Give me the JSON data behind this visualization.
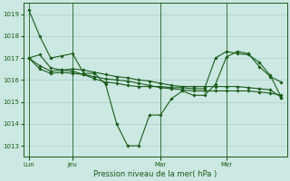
{
  "bg_color": "#cce8e2",
  "grid_color": "#a8d0cc",
  "line_color": "#1a5c1a",
  "xlabel": "Pression niveau de la mer( hPa )",
  "ylim": [
    1012.5,
    1019.5
  ],
  "yticks": [
    1013,
    1014,
    1015,
    1016,
    1017,
    1018,
    1019
  ],
  "x_tick_labels": [
    "Lun",
    "Jeu",
    "Mar",
    "Mer"
  ],
  "x_tick_positions": [
    0,
    4,
    12,
    18
  ],
  "n_points": 24,
  "series": [
    [
      1019.2,
      1018.0,
      1017.0,
      1017.1,
      1017.2,
      1016.3,
      1016.3,
      1015.8,
      1014.0,
      1013.0,
      1013.0,
      1014.4,
      1014.4,
      1015.15,
      1015.5,
      1015.3,
      1015.3,
      1015.8,
      1017.05,
      1017.3,
      1017.2,
      1016.6,
      1016.15,
      1015.9
    ],
    [
      1017.0,
      1016.5,
      1016.3,
      1016.35,
      1016.3,
      1016.25,
      1016.15,
      1016.05,
      1016.0,
      1015.95,
      1015.85,
      1015.75,
      1015.65,
      1015.6,
      1015.55,
      1015.5,
      1015.5,
      1015.5,
      1015.5,
      1015.5,
      1015.5,
      1015.45,
      1015.4,
      1015.3
    ],
    [
      1017.0,
      1016.65,
      1016.4,
      1016.45,
      1016.5,
      1016.45,
      1016.35,
      1016.25,
      1016.15,
      1016.1,
      1016.0,
      1015.95,
      1015.85,
      1015.75,
      1015.7,
      1015.7,
      1015.7,
      1015.7,
      1015.7,
      1015.7,
      1015.65,
      1015.6,
      1015.55,
      1015.2
    ],
    [
      1017.0,
      1017.15,
      1016.55,
      1016.45,
      1016.4,
      1016.25,
      1016.05,
      1015.9,
      1015.85,
      1015.75,
      1015.7,
      1015.7,
      1015.7,
      1015.65,
      1015.65,
      1015.6,
      1015.6,
      1017.0,
      1017.3,
      1017.2,
      1017.15,
      1016.8,
      1016.2,
      1015.2
    ]
  ]
}
